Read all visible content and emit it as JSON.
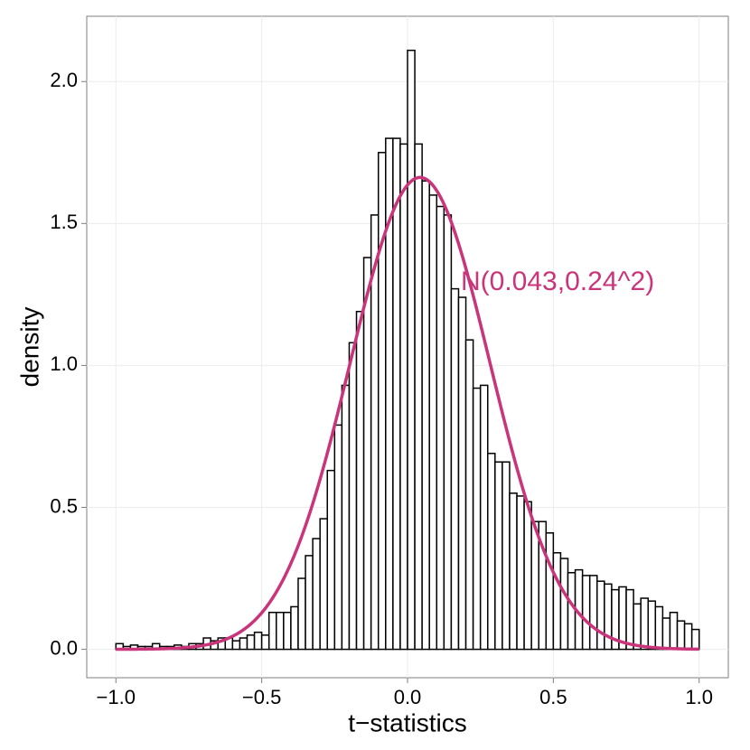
{
  "chart_data": {
    "type": "histogram",
    "x_label": "t−statistics",
    "y_label": "density",
    "bins": [
      -1,
      -0.975,
      -0.95,
      -0.925,
      -0.9,
      -0.875,
      -0.85,
      -0.825,
      -0.8,
      -0.775,
      -0.75,
      -0.725,
      -0.7,
      -0.675,
      -0.65,
      -0.625,
      -0.6,
      -0.575,
      -0.55,
      -0.525,
      -0.5,
      -0.475,
      -0.45,
      -0.425,
      -0.4,
      -0.375,
      -0.35,
      -0.325,
      -0.3,
      -0.275,
      -0.25,
      -0.225,
      -0.2,
      -0.175,
      -0.15,
      -0.125,
      -0.1,
      -0.075,
      -0.05,
      -0.025,
      0,
      0.025,
      0.05,
      0.075,
      0.1,
      0.125,
      0.15,
      0.175,
      0.2,
      0.225,
      0.25,
      0.275,
      0.3,
      0.325,
      0.35,
      0.375,
      0.4,
      0.425,
      0.45,
      0.475,
      0.5,
      0.525,
      0.55,
      0.575,
      0.6,
      0.625,
      0.65,
      0.675,
      0.7,
      0.725,
      0.75,
      0.775,
      0.8,
      0.825,
      0.85,
      0.875,
      0.9,
      0.925,
      0.95,
      0.975,
      1
    ],
    "values": [
      0.02,
      0.01,
      0.015,
      0.01,
      0.01,
      0.02,
      0.01,
      0.01,
      0.015,
      0.01,
      0.02,
      0.02,
      0.04,
      0.03,
      0.04,
      0.04,
      0.03,
      0.04,
      0.05,
      0.06,
      0.05,
      0.13,
      0.13,
      0.13,
      0.15,
      0.25,
      0.33,
      0.39,
      0.46,
      0.63,
      0.79,
      0.93,
      1.08,
      1.19,
      1.38,
      1.53,
      1.75,
      1.8,
      1.8,
      1.78,
      2.11,
      1.78,
      1.65,
      1.6,
      1.56,
      1.53,
      1.27,
      1.24,
      1.09,
      0.92,
      0.93,
      0.69,
      0.66,
      0.66,
      0.55,
      0.54,
      0.52,
      0.45,
      0.45,
      0.41,
      0.34,
      0.32,
      0.27,
      0.28,
      0.26,
      0.26,
      0.24,
      0.23,
      0.21,
      0.22,
      0.21,
      0.16,
      0.18,
      0.17,
      0.15,
      0.11,
      0.13,
      0.1,
      0.09,
      0.07
    ],
    "bar_fill": "#ffffff",
    "bar_stroke": "#000000",
    "curve": {
      "mean": 0.043,
      "sd": 0.24,
      "color": "#c9347a",
      "label": "N(0.043,0.24^2)"
    },
    "xlim": [
      -1.1,
      1.1
    ],
    "xticks": [
      {
        "value": -1,
        "label": "−1.0"
      },
      {
        "value": -0.5,
        "label": "−0.5"
      },
      {
        "value": 0,
        "label": "0.0"
      },
      0.5,
      {
        "value": 1,
        "label": "1.0"
      }
    ],
    "ylim": [
      -0.1,
      2.23
    ],
    "yticks": [
      {
        "value": 0,
        "label": "0.0"
      },
      0.5,
      {
        "value": 1,
        "label": "1.0"
      },
      1.5,
      {
        "value": 2,
        "label": "2.0"
      }
    ],
    "grid": true
  }
}
